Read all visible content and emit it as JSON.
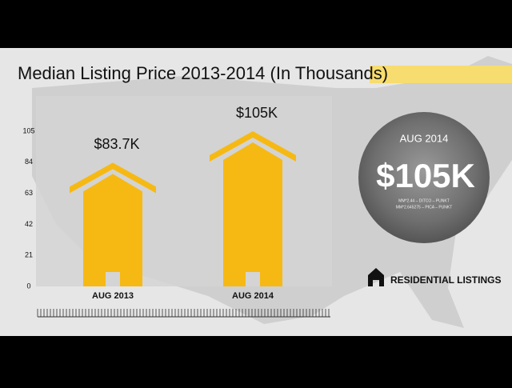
{
  "chart_data": {
    "type": "house-bar",
    "title": "Median Listing Price 2013-2014 (In Thousands)",
    "categories": [
      "AUG 2013",
      "AUG 2014"
    ],
    "values": [
      83.7,
      105
    ],
    "value_labels": [
      "$83.7K",
      "$105K"
    ],
    "color": "#f6b914",
    "ylim": [
      0,
      105
    ],
    "yticks": [
      0,
      21,
      42,
      63,
      84,
      105
    ],
    "callout": {
      "title": "AUG 2014",
      "text": "$105K",
      "notes": [
        "MM*2.44 – DITCO – PUNKT",
        "MM*2.645275 – PICA – PUNKT"
      ]
    },
    "logo": "RESIDENTIAL LISTINGS"
  }
}
